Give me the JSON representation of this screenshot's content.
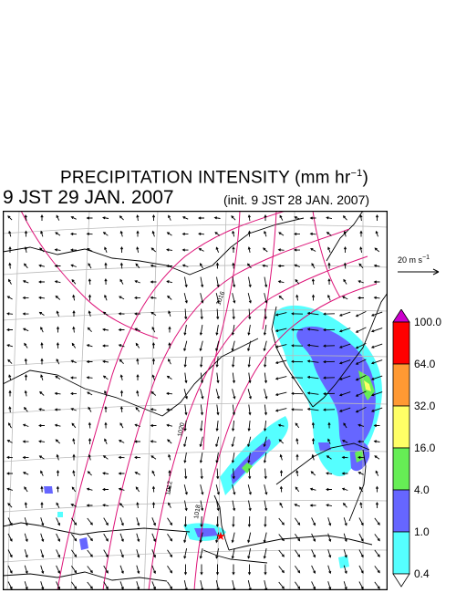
{
  "header": {
    "title_main": "PRECIPITATION INTENSITY (mm hr",
    "title_sup": "−1",
    "title_close": ")",
    "valid_time": "9 JST 29 JAN. 2007",
    "init_time": "(init. 9 JST 28 JAN. 2007)"
  },
  "wind_scale": {
    "label_main": "20 m s",
    "label_sup": "−1"
  },
  "map": {
    "isobar_labels": [
      "1012",
      "1020",
      "1018",
      "1016"
    ],
    "marker_color": "#ff0000"
  },
  "colorbar": {
    "levels": [
      "100.0",
      "64.0",
      "32.0",
      "16.0",
      "4.0",
      "1.0",
      "0.4"
    ],
    "colors": [
      "#cc00cc",
      "#ff0000",
      "#ff9933",
      "#ffff66",
      "#66ee55",
      "#6666ff",
      "#55ffff",
      "#ffffff"
    ]
  },
  "colors": {
    "isobar": "#dd1177",
    "grid": "#bbbbbb",
    "coast": "#000000",
    "frame": "#000000"
  }
}
